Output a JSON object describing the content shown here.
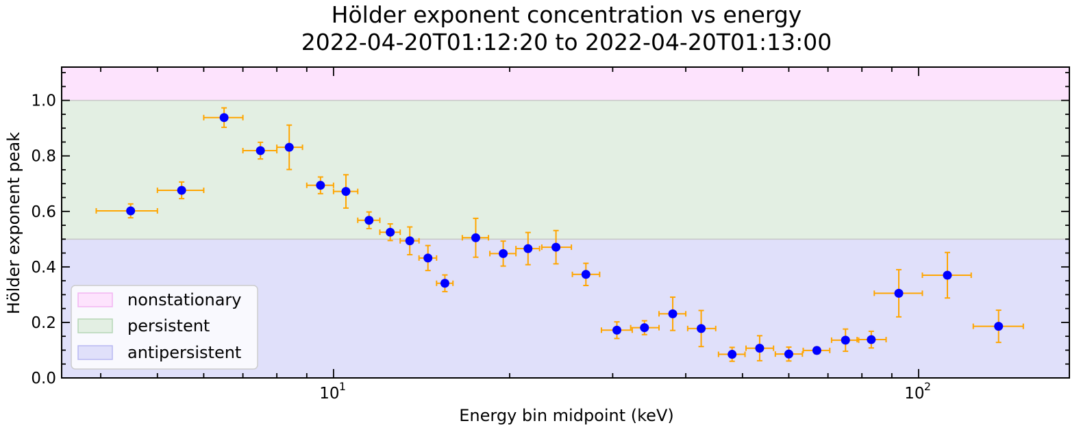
{
  "chart_data": {
    "type": "scatter",
    "title_line1": "Hölder exponent concentration vs energy",
    "title_line2": "2022-04-20T01:12:20 to 2022-04-20T01:13:00",
    "xlabel": "Energy bin midpoint (keV)",
    "ylabel": "Hölder exponent peak",
    "x_scale": "log",
    "xlim": [
      3.43,
      181
    ],
    "ylim": [
      0.0,
      1.12
    ],
    "x_major_ticks": [
      10,
      100
    ],
    "x_major_tick_labels": [
      "10",
      "10"
    ],
    "x_tick_label_exponent": [
      "1",
      "2"
    ],
    "y_ticks": [
      0.0,
      0.2,
      0.4,
      0.6,
      0.8,
      1.0
    ],
    "y_tick_labels": [
      "0.0",
      "0.2",
      "0.4",
      "0.6",
      "0.8",
      "1.0"
    ],
    "bands": [
      {
        "name": "nonstationary",
        "y0": 1.0,
        "y1": 1.12,
        "color": "#fde3fd"
      },
      {
        "name": "persistent",
        "y0": 0.5,
        "y1": 1.0,
        "color": "#e3efe3"
      },
      {
        "name": "antipersistent",
        "y0": 0.0,
        "y1": 0.5,
        "color": "#e0e0fa"
      }
    ],
    "legend": {
      "position": "lower-left",
      "entries": [
        "nonstationary",
        "persistent",
        "antipersistent"
      ]
    },
    "marker_color": "#0000ff",
    "errorbar_color": "#ffa500",
    "points": [
      {
        "x": 4.5,
        "xlo": 3.93,
        "xhi": 5.0,
        "y": 0.602,
        "yerr": 0.025
      },
      {
        "x": 5.5,
        "xlo": 5.0,
        "xhi": 6.0,
        "y": 0.676,
        "yerr": 0.03
      },
      {
        "x": 6.5,
        "xlo": 6.0,
        "xhi": 7.0,
        "y": 0.938,
        "yerr": 0.035
      },
      {
        "x": 7.5,
        "xlo": 7.0,
        "xhi": 8.0,
        "y": 0.819,
        "yerr": 0.03
      },
      {
        "x": 8.4,
        "xlo": 8.0,
        "xhi": 8.85,
        "y": 0.831,
        "yerr": 0.08
      },
      {
        "x": 9.5,
        "xlo": 9.0,
        "xhi": 10.0,
        "y": 0.694,
        "yerr": 0.03
      },
      {
        "x": 10.5,
        "xlo": 10.0,
        "xhi": 11.0,
        "y": 0.672,
        "yerr": 0.06
      },
      {
        "x": 11.5,
        "xlo": 11.0,
        "xhi": 12.0,
        "y": 0.568,
        "yerr": 0.03
      },
      {
        "x": 12.5,
        "xlo": 12.0,
        "xhi": 13.0,
        "y": 0.525,
        "yerr": 0.03
      },
      {
        "x": 13.5,
        "xlo": 13.0,
        "xhi": 14.0,
        "y": 0.494,
        "yerr": 0.05
      },
      {
        "x": 14.5,
        "xlo": 14.0,
        "xhi": 15.0,
        "y": 0.432,
        "yerr": 0.045
      },
      {
        "x": 15.5,
        "xlo": 15.0,
        "xhi": 16.0,
        "y": 0.341,
        "yerr": 0.03
      },
      {
        "x": 17.5,
        "xlo": 16.6,
        "xhi": 18.4,
        "y": 0.505,
        "yerr": 0.07
      },
      {
        "x": 19.5,
        "xlo": 18.5,
        "xhi": 20.5,
        "y": 0.448,
        "yerr": 0.045
      },
      {
        "x": 21.5,
        "xlo": 20.5,
        "xhi": 22.5,
        "y": 0.466,
        "yerr": 0.058
      },
      {
        "x": 24.0,
        "xlo": 22.7,
        "xhi": 25.5,
        "y": 0.471,
        "yerr": 0.06
      },
      {
        "x": 27.0,
        "xlo": 25.6,
        "xhi": 28.5,
        "y": 0.373,
        "yerr": 0.04
      },
      {
        "x": 30.5,
        "xlo": 28.7,
        "xhi": 32.4,
        "y": 0.172,
        "yerr": 0.03
      },
      {
        "x": 34.0,
        "xlo": 32.2,
        "xhi": 36.0,
        "y": 0.181,
        "yerr": 0.025
      },
      {
        "x": 38.0,
        "xlo": 36.0,
        "xhi": 40.0,
        "y": 0.231,
        "yerr": 0.06
      },
      {
        "x": 42.5,
        "xlo": 40.3,
        "xhi": 45.0,
        "y": 0.178,
        "yerr": 0.065
      },
      {
        "x": 48.0,
        "xlo": 45.5,
        "xhi": 50.5,
        "y": 0.085,
        "yerr": 0.025
      },
      {
        "x": 53.5,
        "xlo": 50.7,
        "xhi": 56.5,
        "y": 0.107,
        "yerr": 0.045
      },
      {
        "x": 60.0,
        "xlo": 56.9,
        "xhi": 63.3,
        "y": 0.086,
        "yerr": 0.025
      },
      {
        "x": 67.0,
        "xlo": 63.5,
        "xhi": 70.5,
        "y": 0.099,
        "yerr": 0.012
      },
      {
        "x": 75.0,
        "xlo": 71.0,
        "xhi": 79.0,
        "y": 0.136,
        "yerr": 0.04
      },
      {
        "x": 83.0,
        "xlo": 78.5,
        "xhi": 88.0,
        "y": 0.138,
        "yerr": 0.03
      },
      {
        "x": 92.5,
        "xlo": 84.0,
        "xhi": 101.5,
        "y": 0.305,
        "yerr": 0.085
      },
      {
        "x": 112.0,
        "xlo": 101.5,
        "xhi": 123.0,
        "y": 0.37,
        "yerr": 0.082
      },
      {
        "x": 137.0,
        "xlo": 124.0,
        "xhi": 151.0,
        "y": 0.186,
        "yerr": 0.058
      }
    ]
  }
}
